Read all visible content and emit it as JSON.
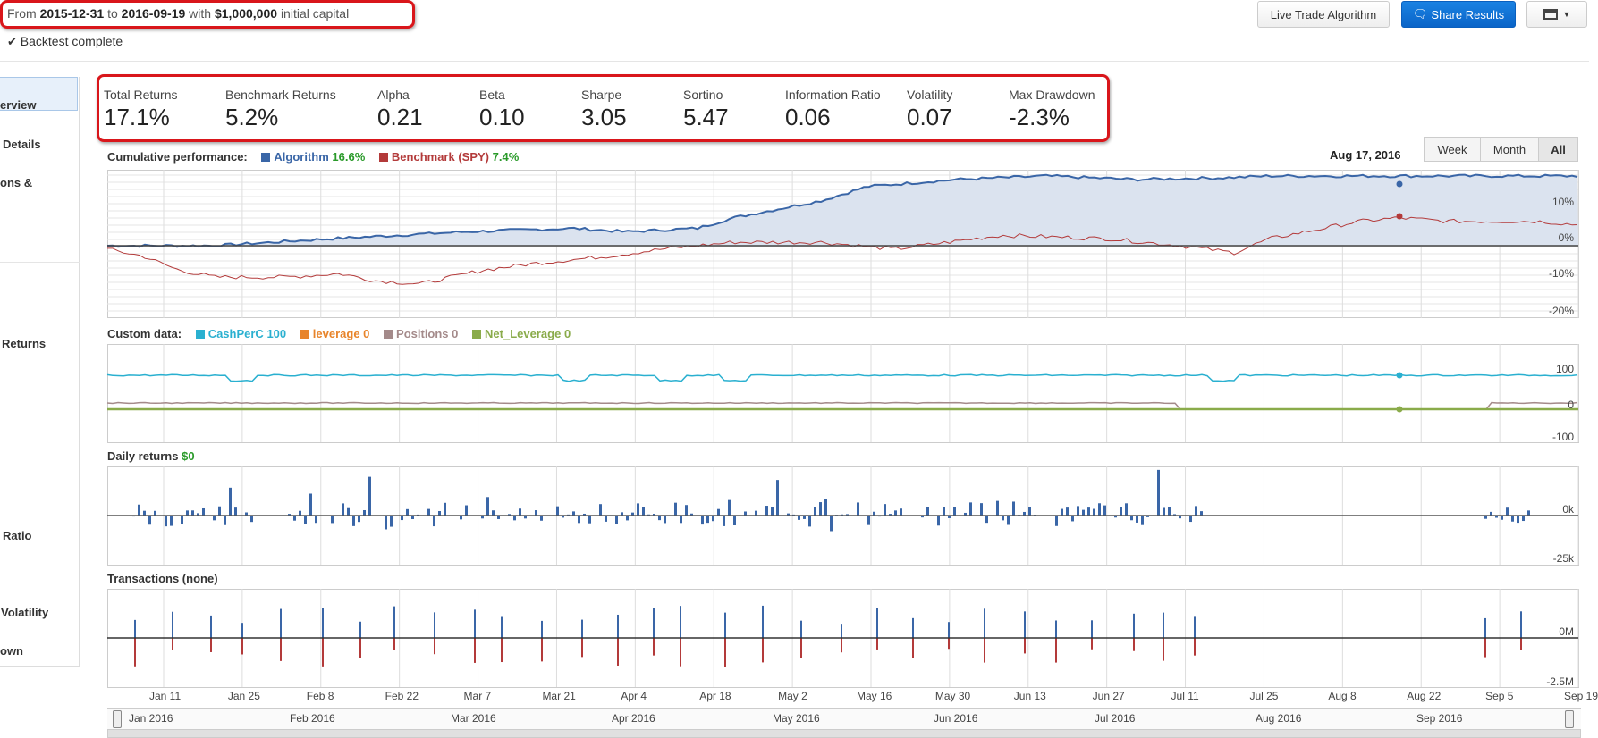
{
  "header": {
    "from_word": "From",
    "start_date": "2015-12-31",
    "to_word": "to",
    "end_date": "2016-09-19",
    "with_word": "with",
    "capital": "$1,000,000",
    "capital_suffix": "initial capital",
    "status": "Backtest complete"
  },
  "toolbar": {
    "live_trade_label": "Live Trade Algorithm",
    "share_label": "Share Results",
    "menu_icon": "table-icon"
  },
  "sidebar": {
    "items": [
      {
        "label": "erview"
      },
      {
        "label": "Details"
      },
      {
        "label": "ons &"
      },
      {
        "label": "Returns"
      },
      {
        "label": "Ratio"
      },
      {
        "label": "Volatility"
      },
      {
        "label": "own"
      }
    ]
  },
  "stats": [
    {
      "label": "Total Returns",
      "value": "17.1%"
    },
    {
      "label": "Benchmark Returns",
      "value": "5.2%"
    },
    {
      "label": "Alpha",
      "value": "0.21"
    },
    {
      "label": "Beta",
      "value": "0.10"
    },
    {
      "label": "Sharpe",
      "value": "3.05"
    },
    {
      "label": "Sortino",
      "value": "5.47"
    },
    {
      "label": "Information Ratio",
      "value": "0.06"
    },
    {
      "label": "Volatility",
      "value": "0.07"
    },
    {
      "label": "Max Drawdown",
      "value": "-2.3%"
    }
  ],
  "cumulative": {
    "title": "Cumulative performance:",
    "algo_label": "Algorithm",
    "algo_value": "16.6%",
    "bench_label": "Benchmark (SPY)",
    "bench_value": "7.4%",
    "hover_date": "Aug 17, 2016",
    "range_buttons": [
      "Week",
      "Month",
      "All"
    ],
    "active_range": "All",
    "y_ticks": [
      "10%",
      "0%",
      "-10%",
      "-20%"
    ]
  },
  "custom": {
    "title": "Custom data:",
    "series": [
      {
        "name": "CashPerC",
        "value": "100",
        "color": "#2ab0d0"
      },
      {
        "name": "leverage",
        "value": "0",
        "color": "#e8842a"
      },
      {
        "name": "Positions",
        "value": "0",
        "color": "#a48a8a"
      },
      {
        "name": "Net_Leverage",
        "value": "0",
        "color": "#8aab4a"
      }
    ],
    "y_ticks": [
      "100",
      "0",
      "-100"
    ]
  },
  "daily": {
    "title": "Daily returns",
    "value": "$0",
    "y_ticks": [
      "0k",
      "-25k"
    ]
  },
  "transactions": {
    "title": "Transactions (none)",
    "y_ticks": [
      "0M",
      "-2.5M"
    ]
  },
  "x_axis_labels": [
    "Jan 11",
    "Jan 25",
    "Feb 8",
    "Feb 22",
    "Mar 7",
    "Mar 21",
    "Apr 4",
    "Apr 18",
    "May 2",
    "May 16",
    "May 30",
    "Jun 13",
    "Jun 27",
    "Jul 11",
    "Jul 25",
    "Aug 8",
    "Aug 22",
    "Sep 5",
    "Sep 19"
  ],
  "navigator_labels": [
    "Jan 2016",
    "Feb 2016",
    "Mar 2016",
    "Apr 2016",
    "May 2016",
    "Jun 2016",
    "Jul 2016",
    "Aug 2016",
    "Sep 2016"
  ],
  "colors": {
    "algorithm": "#3a66a7",
    "benchmark": "#b33a3a",
    "highlight": "#d9161b",
    "positive_bar": "#3a66a7",
    "negative_bar": "#b33a3a"
  }
}
